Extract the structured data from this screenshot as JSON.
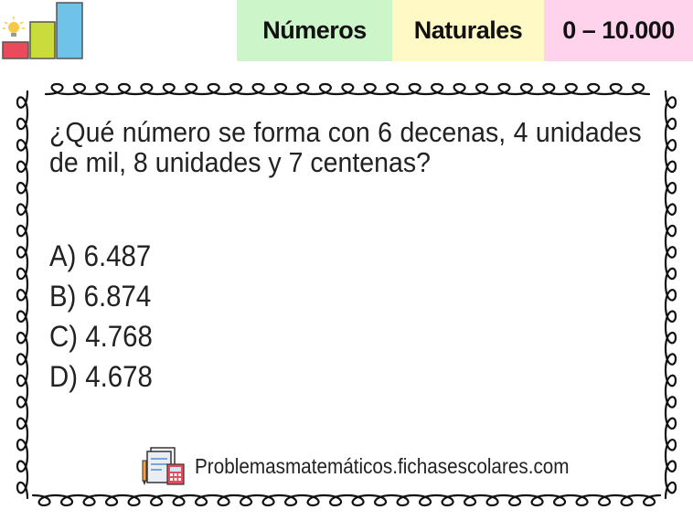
{
  "header": {
    "tabs": [
      {
        "label": "Números",
        "color": "#ccf5c9"
      },
      {
        "label": "Naturales",
        "color": "#fff9c6"
      },
      {
        "label": "0 – 10.000",
        "color": "#ffd3ec"
      }
    ]
  },
  "question": {
    "text": "¿Qué número se forma con 6 decenas, 4 unidades de mil, 8 unidades y 7 centenas?"
  },
  "options": [
    {
      "label": "A) 6.487"
    },
    {
      "label": "B) 6.874"
    },
    {
      "label": "C) 4.768"
    },
    {
      "label": "D) 4.678"
    }
  ],
  "footer": {
    "site": "Problemasmatemáticos.fichasescolares.com",
    "icon": "worksheet-calculator-icon"
  },
  "logo": {
    "icon": "bar-chart-lightbulb-icon",
    "colors": [
      "#e94b5b",
      "#c9dc3c",
      "#6fc2e8",
      "#f7c948"
    ]
  }
}
